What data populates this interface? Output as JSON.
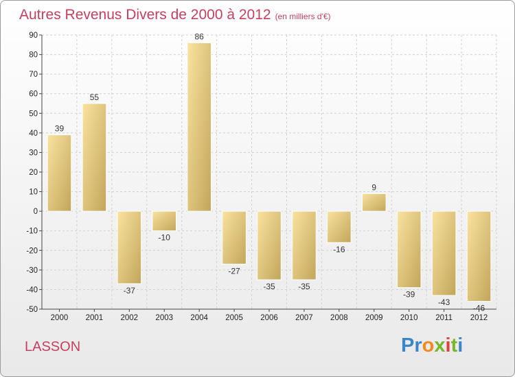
{
  "header": {
    "title": "Autres Revenus Divers de 2000 à 2012",
    "subtitle": "(en milliers d'€)"
  },
  "footer": {
    "commune": "LASSON",
    "logo_text": "Proxiti"
  },
  "colors": {
    "title": "#c83e5e",
    "bar_light": "#f7df9a",
    "bar_dark": "#c3a658",
    "axis": "#444444",
    "grid": "#d0d0d0"
  },
  "chart_data": {
    "type": "bar",
    "title": "Autres Revenus Divers de 2000 à 2012",
    "subtitle": "(en milliers d'€)",
    "xlabel": "",
    "ylabel": "",
    "categories": [
      "2000",
      "2001",
      "2002",
      "2003",
      "2004",
      "2005",
      "2006",
      "2007",
      "2008",
      "2009",
      "2010",
      "2011",
      "2012"
    ],
    "values": [
      39,
      55,
      -37,
      -10,
      86,
      -27,
      -35,
      -35,
      -16,
      9,
      -39,
      -43,
      -46
    ],
    "ylim": [
      -50,
      90
    ],
    "yticks": [
      -50,
      -40,
      -30,
      -20,
      -10,
      0,
      10,
      20,
      30,
      40,
      50,
      60,
      70,
      80,
      90
    ],
    "grid": true,
    "legend": "none"
  }
}
